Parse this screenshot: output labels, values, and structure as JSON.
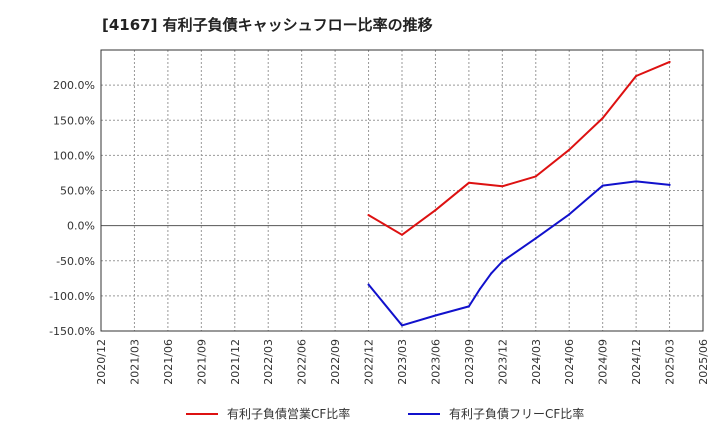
{
  "chart_data": {
    "type": "line",
    "title": "[4167]  有利子負債キャッシュフロー比率の推移",
    "xlabel": "",
    "ylabel": "",
    "ylim": [
      -150,
      250
    ],
    "yticks": [
      -150,
      -100,
      -50,
      0,
      50,
      100,
      150,
      200
    ],
    "ytick_labels": [
      "-150.0%",
      "-100.0%",
      "-50.0%",
      "0.0%",
      "50.0%",
      "100.0%",
      "150.0%",
      "200.0%"
    ],
    "xlim": [
      "2020-12",
      "2025-06"
    ],
    "xtick_labels": [
      "2020/12",
      "2021/03",
      "2021/06",
      "2021/09",
      "2021/12",
      "2022/03",
      "2022/06",
      "2022/09",
      "2022/12",
      "2023/03",
      "2023/06",
      "2023/09",
      "2023/12",
      "2024/03",
      "2024/06",
      "2024/09",
      "2024/12",
      "2025/03",
      "2025/06"
    ],
    "grid": true,
    "legend_position": "bottom",
    "series": [
      {
        "name": "有利子負債営業CF比率",
        "color": "#dd1111",
        "points": [
          [
            "2022-12",
            15
          ],
          [
            "2023-03",
            -13
          ],
          [
            "2023-06",
            22
          ],
          [
            "2023-09",
            61
          ],
          [
            "2023-12",
            56
          ],
          [
            "2024-03",
            70
          ],
          [
            "2024-06",
            108
          ],
          [
            "2024-09",
            153
          ],
          [
            "2024-12",
            213
          ],
          [
            "2025-03",
            233
          ]
        ]
      },
      {
        "name": "有利子負債フリーCF比率",
        "color": "#1111cc",
        "points": [
          [
            "2022-12",
            -84
          ],
          [
            "2023-03",
            -142
          ],
          [
            "2023-06",
            -128
          ],
          [
            "2023-09",
            -115
          ],
          [
            "2023-10",
            -90
          ],
          [
            "2023-11",
            -68
          ],
          [
            "2023-12",
            -51
          ],
          [
            "2024-03",
            -18
          ],
          [
            "2024-06",
            16
          ],
          [
            "2024-09",
            57
          ],
          [
            "2024-12",
            63
          ],
          [
            "2025-03",
            58
          ]
        ]
      }
    ]
  }
}
